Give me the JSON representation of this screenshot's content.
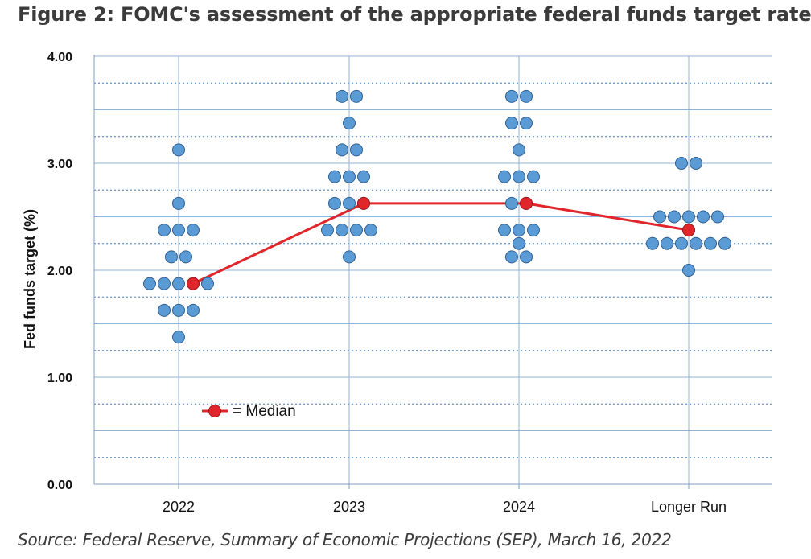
{
  "header": {
    "title": "Figure 2: FOMC's assessment of the appropriate federal funds target rate"
  },
  "footer": {
    "source": "Source: Federal Reserve, Summary of Economic Projections (SEP), March 16, 2022"
  },
  "colors": {
    "dot_fill": "#5b9bd5",
    "dot_stroke": "#2f5f8f",
    "median_line": "#e0262b",
    "median_dot": "#e0262b",
    "grid_major": "#8fb3d6",
    "grid_minor": "#3f7fc0",
    "axis": "#7f9fbf"
  },
  "chart_data": {
    "type": "scatter",
    "subtype": "dot-plot",
    "title": "Figure 2: FOMC's assessment of the appropriate federal funds target rate",
    "xlabel": "",
    "ylabel": "Fed funds target (%)",
    "ylim": [
      0,
      4
    ],
    "yticks": [
      "0.00",
      "1.00",
      "2.00",
      "3.00",
      "4.00"
    ],
    "grid": true,
    "categories": [
      "2022",
      "2023",
      "2024",
      "Longer Run"
    ],
    "dots": [
      {
        "category": "2022",
        "levels": [
          {
            "rate": 3.125,
            "count": 1
          },
          {
            "rate": 2.625,
            "count": 1
          },
          {
            "rate": 2.375,
            "count": 3
          },
          {
            "rate": 2.125,
            "count": 2
          },
          {
            "rate": 1.875,
            "count": 5
          },
          {
            "rate": 1.625,
            "count": 3
          },
          {
            "rate": 1.375,
            "count": 1
          }
        ]
      },
      {
        "category": "2023",
        "levels": [
          {
            "rate": 3.625,
            "count": 2
          },
          {
            "rate": 3.375,
            "count": 1
          },
          {
            "rate": 3.125,
            "count": 2
          },
          {
            "rate": 2.875,
            "count": 3
          },
          {
            "rate": 2.625,
            "count": 3
          },
          {
            "rate": 2.375,
            "count": 4
          },
          {
            "rate": 2.125,
            "count": 1
          }
        ]
      },
      {
        "category": "2024",
        "levels": [
          {
            "rate": 3.625,
            "count": 2
          },
          {
            "rate": 3.375,
            "count": 2
          },
          {
            "rate": 3.125,
            "count": 1
          },
          {
            "rate": 2.875,
            "count": 3
          },
          {
            "rate": 2.625,
            "count": 2
          },
          {
            "rate": 2.375,
            "count": 3
          },
          {
            "rate": 2.25,
            "count": 1
          },
          {
            "rate": 2.125,
            "count": 2
          }
        ]
      },
      {
        "category": "Longer Run",
        "levels": [
          {
            "rate": 3.0,
            "count": 2
          },
          {
            "rate": 2.5,
            "count": 5
          },
          {
            "rate": 2.375,
            "count": 1
          },
          {
            "rate": 2.25,
            "count": 6
          },
          {
            "rate": 2.0,
            "count": 1
          }
        ]
      }
    ],
    "median": {
      "name": "Median",
      "values": [
        1.875,
        2.625,
        2.625,
        2.375
      ]
    },
    "legend": {
      "label": "= Median",
      "position": "bottom-left"
    }
  }
}
